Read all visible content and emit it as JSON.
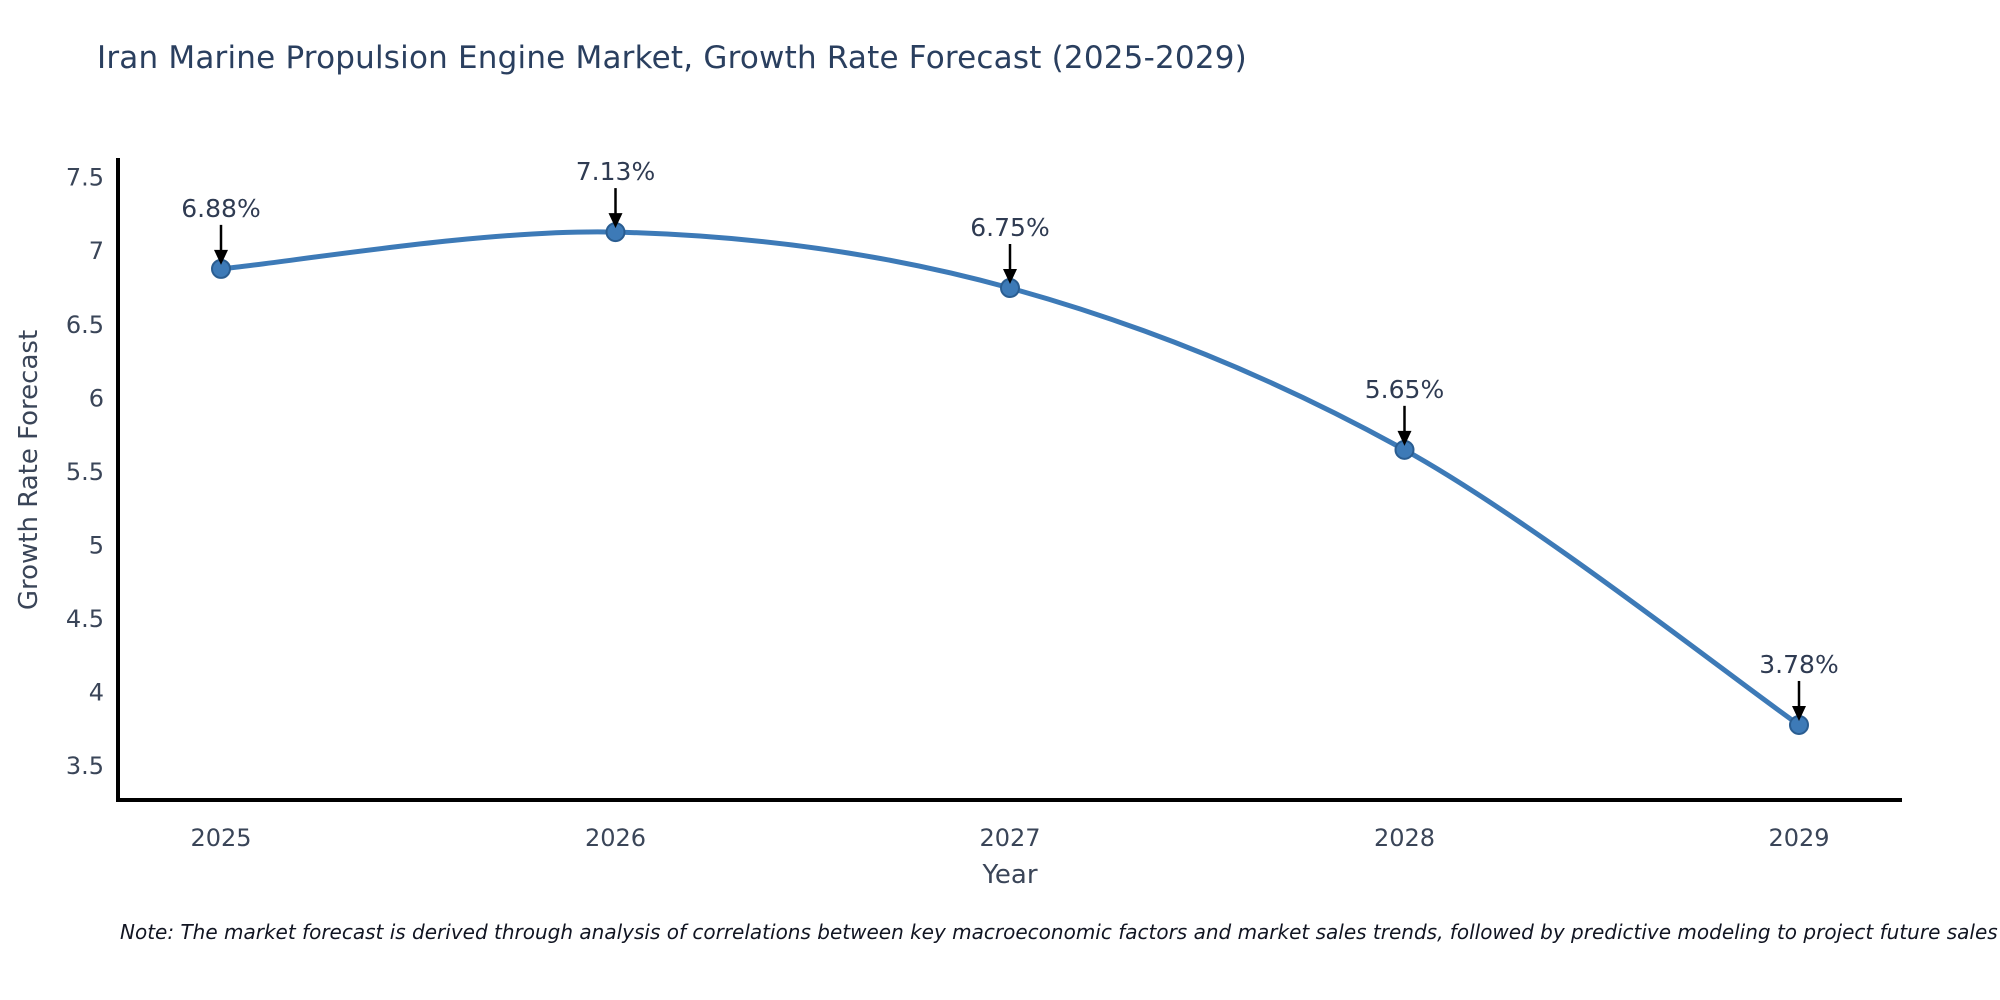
{
  "chart": {
    "title": "Iran Marine Propulsion Engine Market, Growth Rate Forecast (2025-2029)",
    "note": "Note: The market forecast is derived through analysis of correlations between key macroeconomic factors and market sales trends, followed by predictive modeling to project future sales"
  },
  "chart_data": {
    "type": "line",
    "title": "Iran Marine Propulsion Engine Market, Growth Rate Forecast (2025-2029)",
    "x": [
      2025,
      2026,
      2027,
      2028,
      2029
    ],
    "values": [
      6.88,
      7.13,
      6.75,
      5.65,
      3.78
    ],
    "point_labels": [
      "6.88%",
      "7.13%",
      "6.75%",
      "5.65%",
      "3.78%"
    ],
    "xlabel": "Year",
    "ylabel": "Growth Rate Forecast",
    "ylim": [
      3.27,
      7.62
    ],
    "yticks": [
      3.5,
      4,
      4.5,
      5,
      5.5,
      6,
      6.5,
      7,
      7.5
    ],
    "grid": false,
    "legend_position": "none",
    "line_shape": "spline",
    "colors": {
      "line": "#3d7ab7",
      "marker_fill": "#3d7ab7",
      "marker_edge": "#2a5d91",
      "axis": "#000000",
      "tick_label": "#3a4558",
      "annotation_text": "#2f3b52",
      "annotation_arrow": "#000000",
      "title": "#2a3f5f",
      "background": "#ffffff"
    }
  }
}
